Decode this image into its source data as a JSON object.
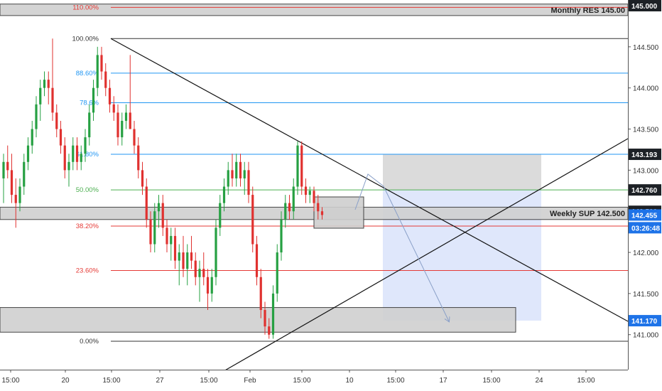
{
  "chart_data": {
    "type": "candlestick",
    "title": "",
    "price_axis": {
      "ticks": [
        "145.000",
        "144.500",
        "144.000",
        "143.500",
        "143.000",
        "142.500",
        "142.000",
        "141.500",
        "141.000"
      ],
      "range": [
        140.62,
        145.08
      ]
    },
    "time_axis": {
      "ticks": [
        "15:00",
        "20",
        "15:00",
        "27",
        "15:00",
        "Feb",
        "15:00",
        "10",
        "15:00",
        "17",
        "15:00",
        "24",
        "15:00"
      ]
    },
    "price_tags": [
      {
        "label": "145.000",
        "price": 145.0,
        "style": "dark"
      },
      {
        "label": "143.193",
        "price": 143.193,
        "style": "dark"
      },
      {
        "label": "142.760",
        "price": 142.76,
        "style": "dark"
      },
      {
        "label": "142.500",
        "price": 142.5,
        "style": "dark"
      },
      {
        "label": "142.455",
        "price": 142.455,
        "style": "blue"
      },
      {
        "label": "03:26:48",
        "price": 142.3,
        "style": "blue"
      },
      {
        "label": "141.170",
        "price": 141.17,
        "style": "blue"
      }
    ],
    "fib_levels": [
      {
        "label": "110.00%",
        "price": 144.98,
        "color": "#e53935"
      },
      {
        "label": "100.00%",
        "price": 144.6,
        "color": "#333333"
      },
      {
        "label": "88.60%",
        "price": 144.18,
        "color": "#2196f3"
      },
      {
        "label": "78.6%",
        "price": 143.82,
        "color": "#2196f3"
      },
      {
        "label": "61.80%",
        "price": 143.193,
        "color": "#2196f3"
      },
      {
        "label": "50.00%",
        "price": 142.76,
        "color": "#4caf50"
      },
      {
        "label": "38.20%",
        "price": 142.32,
        "color": "#e53935"
      },
      {
        "label": "23.60%",
        "price": 141.78,
        "color": "#e53935"
      },
      {
        "label": "0.00%",
        "price": 140.92,
        "color": "#333333"
      }
    ],
    "zones": [
      {
        "label": "Monthly RES 145.00",
        "top": 145.02,
        "bottom": 144.88
      },
      {
        "label": "Weekly SUP 142.500",
        "top": 142.55,
        "bottom": 142.4
      },
      {
        "label": "",
        "top": 141.33,
        "bottom": 141.03
      }
    ],
    "candles": [
      [
        142.9,
        143.2,
        142.6,
        143.1
      ],
      [
        143.1,
        143.3,
        142.9,
        143.0
      ],
      [
        143.0,
        143.2,
        142.6,
        142.7
      ],
      [
        142.7,
        142.9,
        142.3,
        142.6
      ],
      [
        142.6,
        142.9,
        142.5,
        142.8
      ],
      [
        142.8,
        143.2,
        142.7,
        143.1
      ],
      [
        143.1,
        143.4,
        143.0,
        143.3
      ],
      [
        143.3,
        143.6,
        143.2,
        143.5
      ],
      [
        143.5,
        143.9,
        143.4,
        143.8
      ],
      [
        143.8,
        144.1,
        143.6,
        144.0
      ],
      [
        144.0,
        144.2,
        143.9,
        144.1
      ],
      [
        144.1,
        144.2,
        143.8,
        144.0
      ],
      [
        144.0,
        144.6,
        143.6,
        143.7
      ],
      [
        143.7,
        143.8,
        143.4,
        143.5
      ],
      [
        143.5,
        143.6,
        143.2,
        143.3
      ],
      [
        143.3,
        143.4,
        142.9,
        143.0
      ],
      [
        143.0,
        143.2,
        142.8,
        143.1
      ],
      [
        143.1,
        143.4,
        143.0,
        143.3
      ],
      [
        143.3,
        143.4,
        143.0,
        143.1
      ],
      [
        143.1,
        143.3,
        143.0,
        143.2
      ],
      [
        143.2,
        143.5,
        143.1,
        143.4
      ],
      [
        143.4,
        143.8,
        143.3,
        143.7
      ],
      [
        143.7,
        144.1,
        143.6,
        144.0
      ],
      [
        144.0,
        144.5,
        143.9,
        144.4
      ],
      [
        144.4,
        144.5,
        144.1,
        144.2
      ],
      [
        144.2,
        144.3,
        143.9,
        144.0
      ],
      [
        144.0,
        144.1,
        143.7,
        143.8
      ],
      [
        143.8,
        143.9,
        143.6,
        143.7
      ],
      [
        143.7,
        143.8,
        143.3,
        143.4
      ],
      [
        143.4,
        143.7,
        143.3,
        143.6
      ],
      [
        143.6,
        143.8,
        143.5,
        143.7
      ],
      [
        143.7,
        144.4,
        143.5,
        143.5
      ],
      [
        143.5,
        143.6,
        143.2,
        143.3
      ],
      [
        143.3,
        143.4,
        142.9,
        143.0
      ],
      [
        143.0,
        143.1,
        142.7,
        142.8
      ],
      [
        142.8,
        142.9,
        142.3,
        142.4
      ],
      [
        142.4,
        142.5,
        142.0,
        142.1
      ],
      [
        142.1,
        142.6,
        142.0,
        142.5
      ],
      [
        142.5,
        142.7,
        142.3,
        142.6
      ],
      [
        142.6,
        142.7,
        142.2,
        142.3
      ],
      [
        142.3,
        142.4,
        142.0,
        142.1
      ],
      [
        142.1,
        142.3,
        141.9,
        142.2
      ],
      [
        142.2,
        142.3,
        141.8,
        141.9
      ],
      [
        141.9,
        142.1,
        141.6,
        142.0
      ],
      [
        142.0,
        142.2,
        141.7,
        141.8
      ],
      [
        141.8,
        142.1,
        141.6,
        142.0
      ],
      [
        142.0,
        142.2,
        141.8,
        141.9
      ],
      [
        141.9,
        142.0,
        141.6,
        141.7
      ],
      [
        141.7,
        141.9,
        141.4,
        141.8
      ],
      [
        141.8,
        142.0,
        141.6,
        141.7
      ],
      [
        141.7,
        141.8,
        141.3,
        141.5
      ],
      [
        141.5,
        141.8,
        141.4,
        141.7
      ],
      [
        141.7,
        142.4,
        141.6,
        142.3
      ],
      [
        142.3,
        142.7,
        142.2,
        142.6
      ],
      [
        142.6,
        142.9,
        142.5,
        142.8
      ],
      [
        142.8,
        143.1,
        142.7,
        143.0
      ],
      [
        143.0,
        143.2,
        142.8,
        142.9
      ],
      [
        142.9,
        143.2,
        142.8,
        143.1
      ],
      [
        143.1,
        143.2,
        142.8,
        142.9
      ],
      [
        142.9,
        143.1,
        142.7,
        143.0
      ],
      [
        143.0,
        143.1,
        142.6,
        142.7
      ],
      [
        142.7,
        142.8,
        142.0,
        142.1
      ],
      [
        142.1,
        142.2,
        141.6,
        141.7
      ],
      [
        141.7,
        141.8,
        141.2,
        141.3
      ],
      [
        141.3,
        141.4,
        141.0,
        141.1
      ],
      [
        141.1,
        141.2,
        140.95,
        141.0
      ],
      [
        141.0,
        141.6,
        140.95,
        141.5
      ],
      [
        141.5,
        142.1,
        141.4,
        142.0
      ],
      [
        142.0,
        142.5,
        141.9,
        142.4
      ],
      [
        142.4,
        142.7,
        142.3,
        142.6
      ],
      [
        142.6,
        142.7,
        142.4,
        142.5
      ],
      [
        142.5,
        142.9,
        142.4,
        142.8
      ],
      [
        142.8,
        143.35,
        142.7,
        143.3
      ],
      [
        143.3,
        143.35,
        142.7,
        142.8
      ],
      [
        142.8,
        142.9,
        142.6,
        142.7
      ],
      [
        142.7,
        142.8,
        142.6,
        142.75
      ],
      [
        142.75,
        142.8,
        142.5,
        142.6
      ],
      [
        142.6,
        142.7,
        142.4,
        142.5
      ],
      [
        142.5,
        142.55,
        142.4,
        142.455
      ]
    ]
  }
}
